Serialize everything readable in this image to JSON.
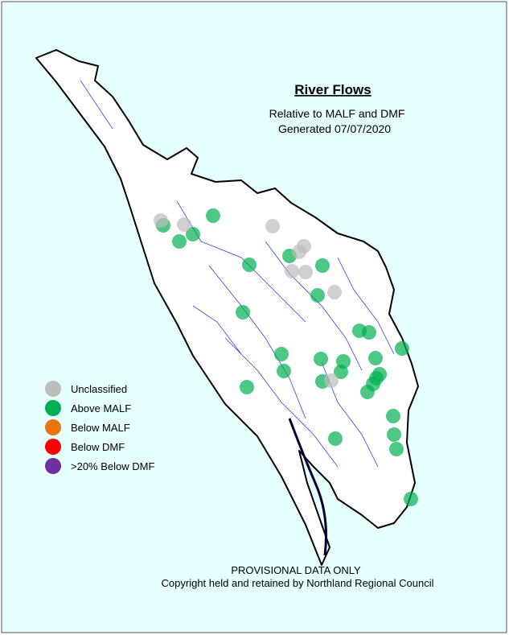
{
  "title": "River Flows",
  "subtitle": "Relative to MALF and DMF",
  "generated": "Generated 07/07/2020",
  "legend": [
    {
      "label": "Unclassified",
      "color": "#bcbcbc"
    },
    {
      "label": "Above MALF",
      "color": "#00b050"
    },
    {
      "label": "Below MALF",
      "color": "#e87511"
    },
    {
      "label": "Below DMF",
      "color": "#ff0000"
    },
    {
      "label": ">20% Below DMF",
      "color": "#7030a0"
    }
  ],
  "footer": [
    "PROVISIONAL DATA ONLY",
    "Copyright held and retained by Northland Regional Council"
  ]
}
